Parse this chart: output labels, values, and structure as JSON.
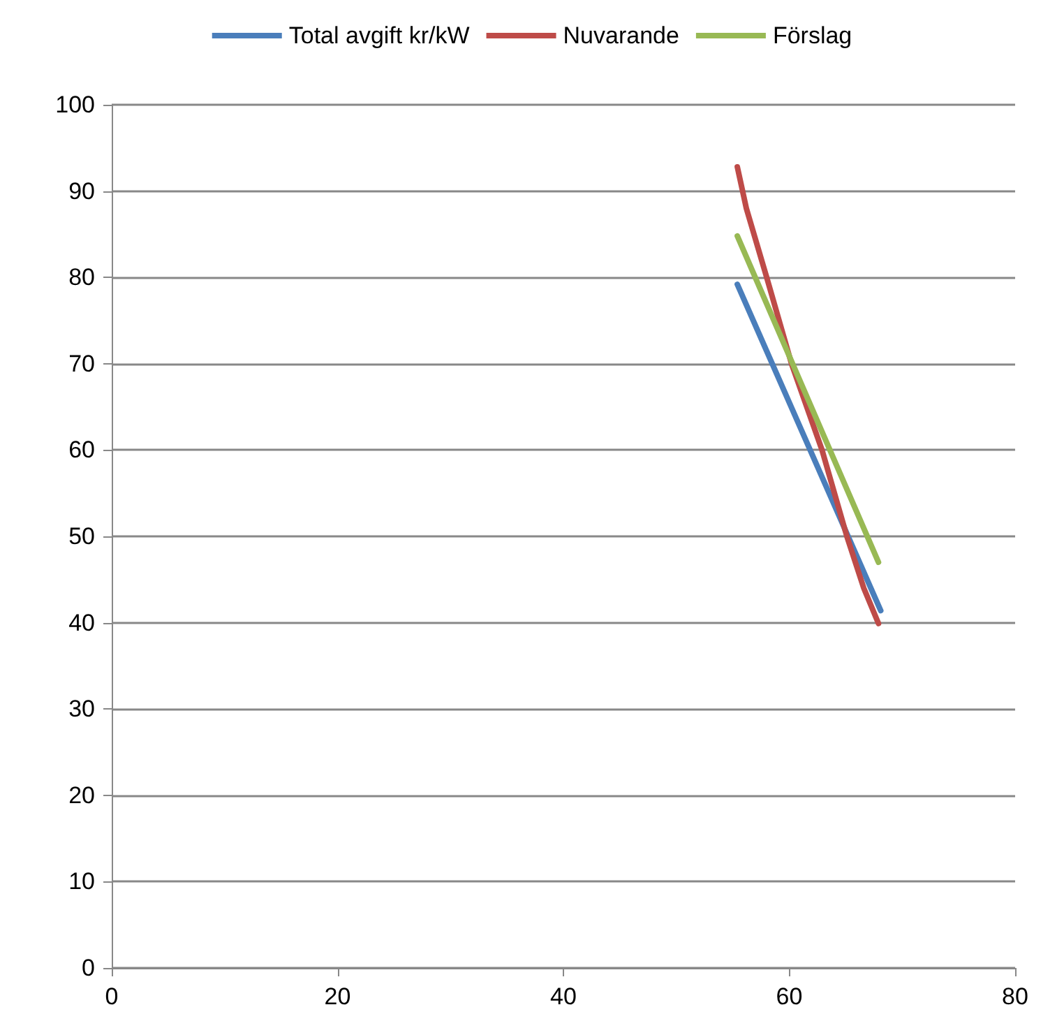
{
  "chart_data": {
    "type": "line",
    "xlim": [
      0,
      80
    ],
    "xticks": [
      0,
      20,
      40,
      60,
      80
    ],
    "ylim": [
      0,
      100
    ],
    "yticks": [
      0,
      10,
      20,
      30,
      40,
      50,
      60,
      70,
      80,
      90,
      100
    ],
    "grid": "y",
    "legend": "top",
    "marker": "none",
    "line_style": "solid",
    "series": [
      {
        "name": "Total avgift kr/kW",
        "color": "#4a7ebb",
        "x": [
          55.4,
          68.1
        ],
        "values": [
          79.2,
          41.4
        ]
      },
      {
        "name": "Nuvarande",
        "color": "#be4b48",
        "x": [
          55.4,
          56.2,
          58.0,
          60.2,
          62.9,
          65.1,
          66.6,
          67.9
        ],
        "values": [
          92.8,
          88,
          80,
          70,
          60,
          50,
          44,
          39.9
        ]
      },
      {
        "name": "Förslag",
        "color": "#98b954",
        "x": [
          55.4,
          67.9
        ],
        "values": [
          84.8,
          47.0
        ]
      }
    ]
  }
}
